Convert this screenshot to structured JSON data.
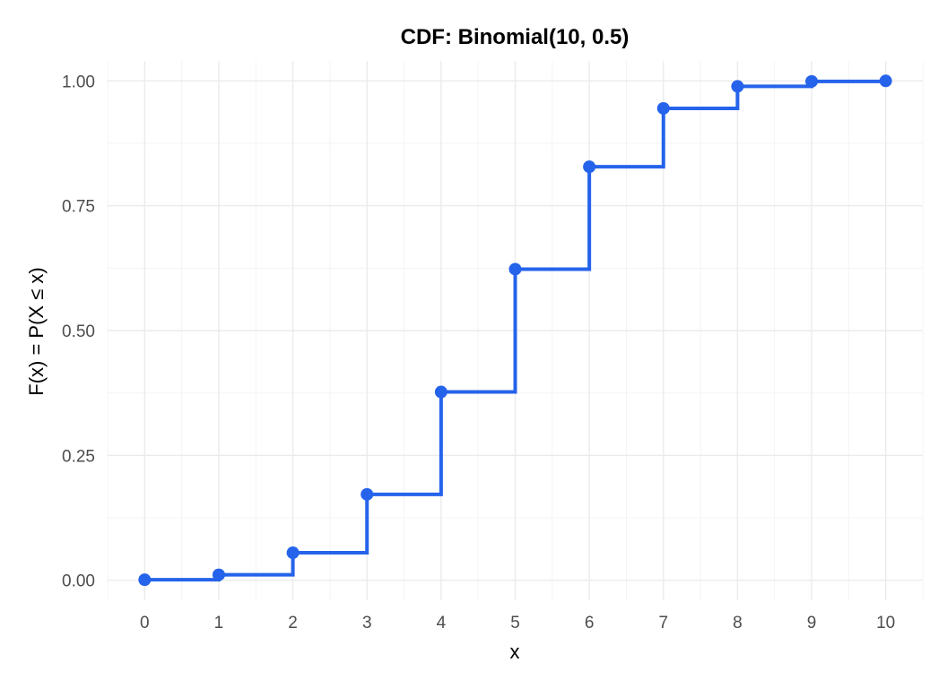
{
  "chart_data": {
    "type": "line",
    "step": true,
    "title": "CDF: Binomial(10, 0.5)",
    "xlabel": "x",
    "ylabel": "F(x) = P(X ≤ x)",
    "xlim": [
      -0.5,
      10.5
    ],
    "ylim": [
      -0.04,
      1.04
    ],
    "x_ticks": [
      0,
      1,
      2,
      3,
      4,
      5,
      6,
      7,
      8,
      9,
      10
    ],
    "y_ticks": [
      0,
      0.25,
      0.5,
      0.75,
      1
    ],
    "y_tick_labels": [
      "0.00",
      "0.25",
      "0.50",
      "0.75",
      "1.00"
    ],
    "grid": true,
    "series": [
      {
        "color": "#2563eb",
        "x": [
          0,
          1,
          2,
          3,
          4,
          5,
          6,
          7,
          8,
          9,
          10
        ],
        "y": [
          0.001,
          0.011,
          0.055,
          0.172,
          0.377,
          0.623,
          0.828,
          0.945,
          0.989,
          0.999,
          1.0
        ]
      }
    ]
  }
}
